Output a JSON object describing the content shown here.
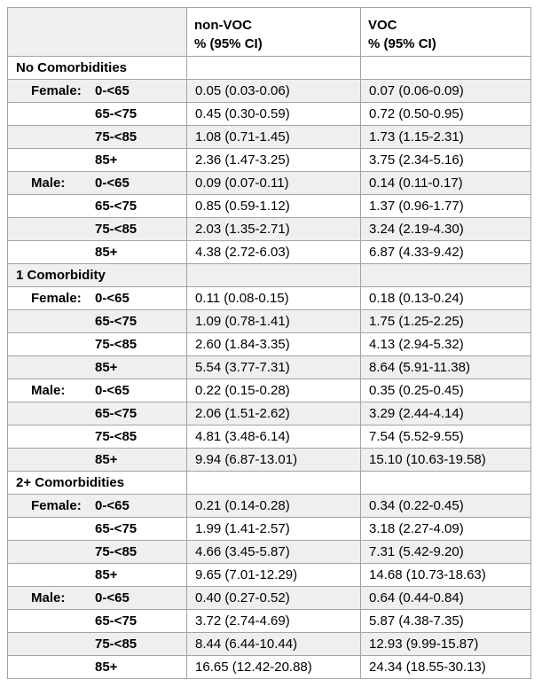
{
  "table": {
    "header": {
      "corner": "",
      "nonvoc": {
        "title": "non-VOC",
        "subtitle": "% (95% CI)"
      },
      "voc": {
        "title": "VOC",
        "subtitle": "% (95% CI)"
      }
    },
    "sections": [
      {
        "title": "No Comorbidities",
        "rows": [
          {
            "sex": "Female:",
            "age": "0-<65",
            "nonvoc": "0.05 (0.03-0.06)",
            "voc": "0.07 (0.06-0.09)"
          },
          {
            "sex": "",
            "age": "65-<75",
            "nonvoc": "0.45 (0.30-0.59)",
            "voc": "0.72 (0.50-0.95)"
          },
          {
            "sex": "",
            "age": "75-<85",
            "nonvoc": "1.08 (0.71-1.45)",
            "voc": "1.73 (1.15-2.31)"
          },
          {
            "sex": "",
            "age": "85+",
            "nonvoc": "2.36 (1.47-3.25)",
            "voc": "3.75 (2.34-5.16)"
          },
          {
            "sex": "Male:",
            "age": "0-<65",
            "nonvoc": "0.09 (0.07-0.11)",
            "voc": "0.14 (0.11-0.17)"
          },
          {
            "sex": "",
            "age": "65-<75",
            "nonvoc": "0.85 (0.59-1.12)",
            "voc": "1.37 (0.96-1.77)"
          },
          {
            "sex": "",
            "age": "75-<85",
            "nonvoc": "2.03 (1.35-2.71)",
            "voc": "3.24 (2.19-4.30)"
          },
          {
            "sex": "",
            "age": "85+",
            "nonvoc": "4.38 (2.72-6.03)",
            "voc": "6.87 (4.33-9.42)"
          }
        ]
      },
      {
        "title": "1 Comorbidity",
        "rows": [
          {
            "sex": "Female:",
            "age": "0-<65",
            "nonvoc": "0.11 (0.08-0.15)",
            "voc": "0.18 (0.13-0.24)"
          },
          {
            "sex": "",
            "age": "65-<75",
            "nonvoc": "1.09 (0.78-1.41)",
            "voc": "1.75 (1.25-2.25)"
          },
          {
            "sex": "",
            "age": "75-<85",
            "nonvoc": "2.60 (1.84-3.35)",
            "voc": "4.13 (2.94-5.32)"
          },
          {
            "sex": "",
            "age": "85+",
            "nonvoc": "5.54 (3.77-7.31)",
            "voc": "8.64 (5.91-11.38)"
          },
          {
            "sex": "Male:",
            "age": "0-<65",
            "nonvoc": "0.22 (0.15-0.28)",
            "voc": "0.35 (0.25-0.45)"
          },
          {
            "sex": "",
            "age": "65-<75",
            "nonvoc": "2.06 (1.51-2.62)",
            "voc": "3.29 (2.44-4.14)"
          },
          {
            "sex": "",
            "age": "75-<85",
            "nonvoc": "4.81 (3.48-6.14)",
            "voc": "7.54 (5.52-9.55)"
          },
          {
            "sex": "",
            "age": "85+",
            "nonvoc": "9.94 (6.87-13.01)",
            "voc": "15.10 (10.63-19.58)"
          }
        ]
      },
      {
        "title": "2+ Comorbidities",
        "rows": [
          {
            "sex": "Female:",
            "age": "0-<65",
            "nonvoc": "0.21 (0.14-0.28)",
            "voc": "0.34 (0.22-0.45)"
          },
          {
            "sex": "",
            "age": "65-<75",
            "nonvoc": "1.99 (1.41-2.57)",
            "voc": "3.18 (2.27-4.09)"
          },
          {
            "sex": "",
            "age": "75-<85",
            "nonvoc": "4.66 (3.45-5.87)",
            "voc": "7.31 (5.42-9.20)"
          },
          {
            "sex": "",
            "age": "85+",
            "nonvoc": "9.65 (7.01-12.29)",
            "voc": "14.68 (10.73-18.63)"
          },
          {
            "sex": "Male:",
            "age": "0-<65",
            "nonvoc": "0.40 (0.27-0.52)",
            "voc": "0.64 (0.44-0.84)"
          },
          {
            "sex": "",
            "age": "65-<75",
            "nonvoc": "3.72 (2.74-4.69)",
            "voc": "5.87 (4.38-7.35)"
          },
          {
            "sex": "",
            "age": "75-<85",
            "nonvoc": "8.44 (6.44-10.44)",
            "voc": "12.93 (9.99-15.87)"
          },
          {
            "sex": "",
            "age": "85+",
            "nonvoc": "16.65 (12.42-20.88)",
            "voc": "24.34 (18.55-30.13)"
          }
        ]
      }
    ],
    "colors": {
      "stripe": "#efefef",
      "border": "#a3a3a3",
      "text": "#000000",
      "background": "#ffffff"
    }
  }
}
